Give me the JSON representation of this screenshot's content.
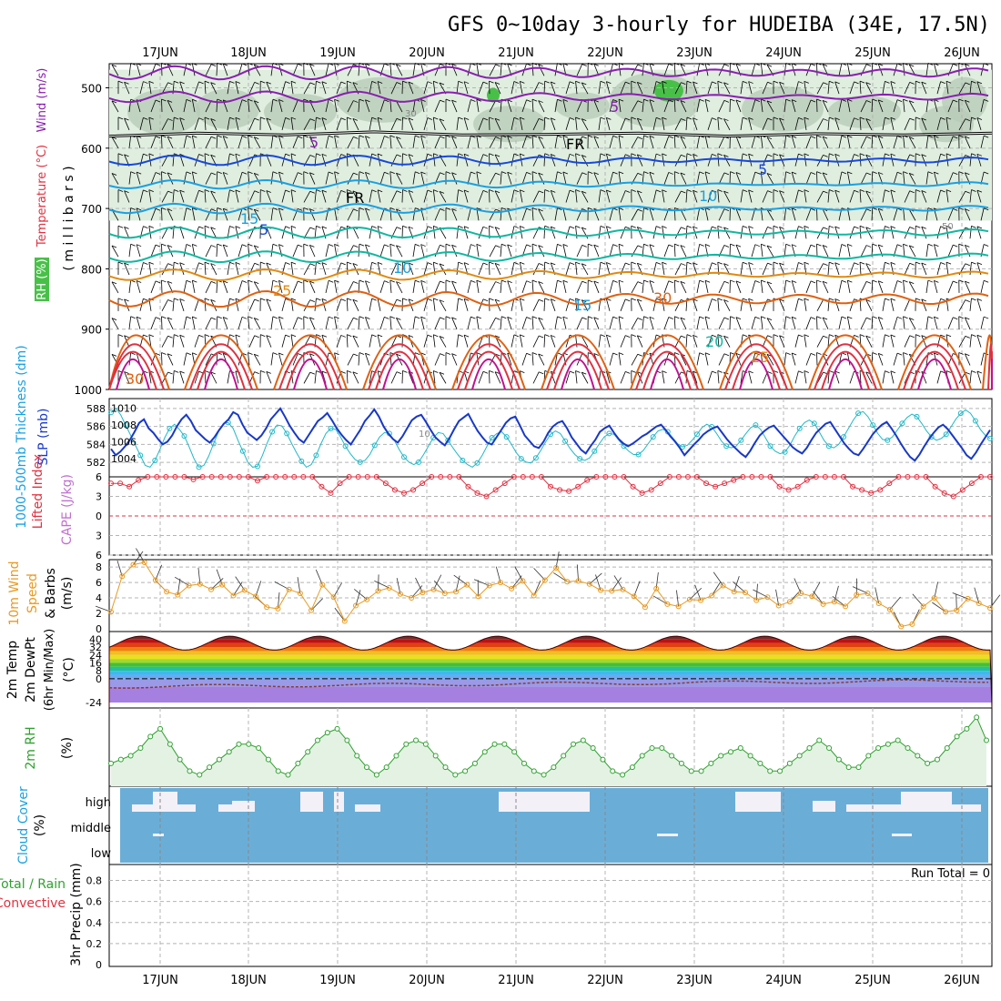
{
  "title": "GFS 0~10day 3-hourly for HUDEIBA (34E, 17.5N)",
  "dates": [
    "17JUN",
    "18JUN",
    "19JUN",
    "20JUN",
    "21JUN",
    "22JUN",
    "23JUN",
    "24JUN",
    "25JUN",
    "26JUN"
  ],
  "colors": {
    "grid": "#b4b4b4",
    "rh_fill": "#dfeedf",
    "purple": "#8a1fb0",
    "blue": "#1848d8",
    "cyan": "#1aa0e0",
    "teal": "#10b8a0",
    "orange": "#e08a10",
    "dark_orange": "#e06010",
    "red": "#e03040",
    "magenta": "#c01090",
    "thickness_line": "#1838c8",
    "slp_line": "#20b8c8",
    "wind10": "#e89a20",
    "rh2m": "#30a030",
    "cloud": "#6aaed8",
    "cloud_clear": "#f4f0f8"
  },
  "chart_data": [
    {
      "type": "heatmap",
      "panel": "upper-air",
      "ylabel_parts": [
        "RH (%)",
        "Temperature (°C)",
        "Wind (m/s)"
      ],
      "ylabel_units": "( m i l l i b a r s )",
      "y_ticks": [
        500,
        600,
        700,
        800,
        900,
        1000
      ],
      "ylim": [
        460,
        1000
      ],
      "contour_labels": [
        {
          "text": "5",
          "note": "purple"
        },
        {
          "text": "FR",
          "note": "freezing level"
        },
        {
          "text": "5",
          "note": "blue"
        },
        {
          "text": "10"
        },
        {
          "text": "15"
        },
        {
          "text": "20"
        },
        {
          "text": "25"
        },
        {
          "text": "30"
        },
        {
          "text": "30",
          "note": "rh"
        },
        {
          "text": "50",
          "note": "rh"
        },
        {
          "text": "10",
          "note": "rh"
        }
      ],
      "freezing_level_mb": [
        580,
        575,
        578,
        573,
        578,
        577,
        575,
        580,
        576,
        578,
        575
      ]
    },
    {
      "type": "line",
      "panel": "thickness-slp",
      "ylabel_left": "1000-500mb Thickness (dm)",
      "ylabel_right": "SLP (mb)",
      "left_ticks": [
        582,
        584,
        586,
        588
      ],
      "right_ticks": [
        1004,
        1006,
        1008,
        1010
      ],
      "series": [
        {
          "name": "Thickness",
          "values": [
            583.5,
            582.8,
            583.2,
            583.8,
            584.5,
            585.4,
            586.4,
            586.8,
            585.8,
            585.3,
            584.6,
            584.0,
            584.3,
            585.0,
            586.0,
            586.8,
            587.3,
            586.6,
            585.6,
            585.1,
            584.6,
            584.2,
            584.8,
            585.6,
            586.3,
            586.8,
            587.6,
            587.3,
            586.2,
            585.3,
            584.9,
            584.5,
            585.0,
            585.8,
            586.8,
            587.4,
            588.0,
            587.1,
            586.1,
            585.3,
            584.6,
            584.2,
            585.0,
            585.8,
            586.6,
            587.0,
            587.5,
            586.7,
            585.8,
            585.1,
            584.5,
            584.0,
            584.8,
            585.6,
            586.6,
            587.2,
            587.9,
            587.1,
            586.0,
            585.2,
            584.6,
            584.2,
            584.9,
            585.8,
            586.7,
            587.1,
            587.3,
            586.5,
            585.6,
            584.8,
            584.3,
            583.9,
            584.7,
            585.7,
            586.6,
            587.0,
            587.4,
            586.4,
            585.5,
            584.8,
            584.2,
            584.0,
            584.8,
            585.6,
            586.4,
            586.9,
            587.1,
            586.1,
            585.0,
            584.4,
            583.8,
            583.6,
            584.3,
            585.3,
            586.0,
            586.4,
            586.6,
            585.8,
            584.8,
            584.1,
            583.4,
            583.0,
            583.8,
            584.5,
            585.4,
            585.8,
            586.1,
            585.3,
            584.6,
            584.1,
            583.8,
            584.1,
            584.5,
            584.9,
            585.2,
            585.6,
            586.0,
            586.2,
            585.6,
            584.9,
            584.3,
            583.6,
            582.8,
            583.4,
            584.0,
            584.5,
            585.1,
            585.5,
            585.8,
            586.0,
            585.3,
            584.6,
            584.0,
            583.5,
            583.0,
            582.6,
            583.3,
            584.2,
            585.0,
            585.5,
            585.9,
            586.1,
            585.5,
            584.9,
            584.3,
            583.7,
            583.3,
            583.0,
            583.6,
            584.5,
            585.3,
            585.8,
            586.3,
            586.5,
            585.7,
            584.9,
            584.1,
            583.5,
            583.0,
            582.8,
            583.5,
            584.3,
            585.1,
            585.7,
            586.2,
            586.5,
            585.8,
            585.0,
            584.1,
            583.3,
            582.6,
            582.2,
            582.9,
            583.8,
            584.6,
            585.3,
            585.9,
            586.2,
            585.7,
            585.0,
            584.3,
            583.6,
            582.8,
            582.4,
            583.1,
            584.0,
            584.8,
            585.6
          ]
        },
        {
          "name": "SLP",
          "values": [
            1009.5,
            1010.0,
            1009.2,
            1008.0,
            1006.8,
            1005.6,
            1004.4,
            1003.2,
            1003.0,
            1003.8,
            1005.1,
            1006.5,
            1007.6,
            1008.1,
            1007.5,
            1006.7,
            1005.4,
            1004.0,
            1003.0,
            1003.2,
            1004.3,
            1005.8,
            1007.2,
            1008.2,
            1008.3,
            1007.6,
            1006.2,
            1004.9,
            1003.6,
            1003.0,
            1003.1,
            1004.4,
            1005.9,
            1007.2,
            1008.0,
            1007.9,
            1007.0,
            1005.8,
            1004.7,
            1003.7,
            1003.0,
            1003.3,
            1004.4,
            1005.8,
            1007.0,
            1007.6,
            1007.5,
            1006.6,
            1005.5,
            1004.6,
            1003.9,
            1003.6,
            1003.8,
            1004.5,
            1005.6,
            1006.6,
            1007.1,
            1007.0,
            1006.2,
            1005.1,
            1004.2,
            1003.6,
            1003.3,
            1003.6,
            1004.5,
            1005.5,
            1006.5,
            1007.1,
            1007.0,
            1006.2,
            1005.3,
            1004.5,
            1003.8,
            1003.3,
            1003.0,
            1003.5,
            1004.4,
            1005.5,
            1006.5,
            1007.0,
            1007.2,
            1006.6,
            1005.7,
            1004.7,
            1004.0,
            1003.6,
            1003.5,
            1004.1,
            1005.0,
            1006.0,
            1006.9,
            1007.3,
            1007.0,
            1006.1,
            1005.2,
            1004.5,
            1004.0,
            1003.8,
            1004.1,
            1004.9,
            1005.8,
            1006.6,
            1007.0,
            1006.9,
            1006.2,
            1005.5,
            1004.9,
            1004.5,
            1004.5,
            1005.0,
            1005.8,
            1006.6,
            1007.3,
            1007.5,
            1007.2,
            1006.5,
            1005.8,
            1005.4,
            1005.6,
            1006.2,
            1006.9,
            1007.7,
            1008.1,
            1007.8,
            1007.0,
            1006.1,
            1005.5,
            1005.3,
            1005.5,
            1006.2,
            1007.0,
            1007.7,
            1008.0,
            1007.5,
            1006.5,
            1005.5,
            1004.9,
            1004.6,
            1004.8,
            1005.6,
            1006.7,
            1007.6,
            1008.3,
            1008.6,
            1008.2,
            1007.2,
            1006.2,
            1005.5,
            1005.3,
            1005.7,
            1006.6,
            1007.6,
            1008.6,
            1009.4,
            1009.6,
            1009.0,
            1008.0,
            1007.0,
            1006.3,
            1006.2,
            1006.6,
            1007.4,
            1008.2,
            1008.9,
            1009.3,
            1009.0,
            1008.2,
            1007.3,
            1006.6,
            1006.2,
            1006.4,
            1006.9,
            1007.8,
            1008.7,
            1009.4,
            1009.8,
            1009.4,
            1008.5,
            1007.5,
            1006.8,
            1006.4
          ]
        }
      ]
    },
    {
      "type": "line",
      "panel": "cape-li",
      "ylabel_left": "Lifted Index",
      "ylabel_right": "CAPE (J/kg)",
      "left_ticks": [
        6,
        3,
        0,
        -3,
        -6
      ],
      "ylim": [
        6,
        -6
      ],
      "li_values": [
        5.0,
        5.0,
        4.5,
        5.5,
        7,
        7,
        7,
        7,
        7,
        5.6,
        7,
        7,
        7,
        7,
        7,
        7,
        5.4,
        7,
        7,
        7,
        7,
        7,
        7,
        4.5,
        3.5,
        5.0,
        7,
        7,
        7,
        7,
        5.0,
        4.0,
        3.5,
        4.0,
        5.0,
        7,
        7,
        7,
        7,
        4.5,
        3.5,
        3.0,
        4.0,
        5.0,
        7,
        7,
        7,
        7,
        4.5,
        4.0,
        3.8,
        4.5,
        5.5,
        7,
        7,
        7,
        7,
        4.5,
        3.5,
        4.0,
        5.0,
        7,
        7,
        7,
        7,
        5.0,
        4.5,
        5.0,
        5.5,
        7,
        7,
        7,
        7,
        4.5,
        4.0,
        4.5,
        5.5,
        7,
        7,
        7,
        7,
        4.5,
        4.0,
        3.5,
        4.0,
        5.0,
        7,
        7,
        7,
        7,
        4.5,
        3.5,
        3.0,
        4.0,
        5.0,
        7,
        7
      ]
    },
    {
      "type": "line",
      "panel": "wind10",
      "ylabel": "10m Wind Speed & Barbs (m/s)",
      "ylim": [
        0,
        8
      ],
      "y_ticks": [
        0,
        2,
        4,
        6,
        8
      ],
      "values": [
        2.2,
        6.8,
        8.3,
        8.6,
        6.3,
        4.8,
        4.4,
        5.6,
        5.8,
        5.1,
        5.7,
        4.3,
        5.0,
        4.2,
        2.8,
        2.6,
        5.1,
        4.6,
        2.4,
        5.7,
        4.1,
        1.0,
        3.0,
        3.8,
        4.9,
        5.3,
        4.5,
        4.0,
        4.7,
        5.1,
        4.6,
        4.8,
        5.7,
        4.2,
        5.6,
        6.0,
        5.2,
        6.2,
        4.3,
        6.3,
        7.9,
        6.1,
        6.2,
        5.8,
        5.0,
        4.9,
        5.1,
        4.2,
        2.8,
        5.2,
        3.2,
        2.9,
        3.8,
        3.7,
        4.3,
        5.6,
        4.8,
        4.7,
        3.7,
        4.1,
        3.0,
        3.5,
        4.6,
        4.2,
        3.2,
        3.5,
        2.9,
        4.4,
        4.6,
        3.3,
        2.5,
        0.3,
        0.6,
        2.9,
        4.0,
        2.2,
        2.4,
        3.9,
        3.3,
        2.7
      ]
    },
    {
      "type": "area",
      "panel": "temp2m",
      "ylabel": "2m Temp 2m DewPt (6hr Min/Max) (°C)",
      "ylim": [
        -24,
        44
      ],
      "y_ticks": [
        -24,
        0,
        8,
        16,
        24,
        32,
        40
      ],
      "temp_min_max": [
        [
          30,
          43
        ],
        [
          30,
          42
        ],
        [
          30,
          43
        ],
        [
          30,
          43
        ],
        [
          30,
          43
        ],
        [
          30,
          43
        ],
        [
          30,
          43
        ],
        [
          30,
          43
        ],
        [
          30,
          43
        ],
        [
          30,
          42
        ]
      ],
      "dewpoint_range": [
        -12,
        2
      ]
    },
    {
      "type": "line",
      "panel": "rh2m",
      "ylabel": "2m RH (%)",
      "values": [
        10,
        12,
        14,
        18,
        24,
        28,
        20,
        12,
        6,
        4,
        8,
        12,
        16,
        20,
        20,
        18,
        12,
        6,
        4,
        10,
        16,
        22,
        26,
        28,
        22,
        14,
        8,
        4,
        8,
        14,
        20,
        22,
        20,
        14,
        8,
        4,
        6,
        10,
        16,
        20,
        20,
        16,
        10,
        6,
        4,
        8,
        14,
        20,
        22,
        18,
        12,
        6,
        4,
        8,
        14,
        18,
        18,
        14,
        10,
        6,
        6,
        10,
        14,
        16,
        18,
        14,
        10,
        6,
        6,
        10,
        14,
        18,
        22,
        18,
        12,
        8,
        8,
        14,
        18,
        20,
        22,
        18,
        14,
        10,
        12,
        18,
        24,
        28,
        34,
        22
      ]
    },
    {
      "type": "bar",
      "panel": "cloud",
      "ylabel": "Cloud Cover (%)",
      "y_ticks": [
        "high",
        "middle",
        "low"
      ]
    },
    {
      "type": "bar",
      "panel": "precip",
      "ylabel": "3hr Precip (mm)",
      "legend": [
        "Total / Rain",
        "Convective"
      ],
      "ylim": [
        0,
        0.9
      ],
      "y_ticks": [
        0,
        0.2,
        0.4,
        0.6,
        0.8
      ],
      "run_total": "Run Total = 0"
    }
  ]
}
